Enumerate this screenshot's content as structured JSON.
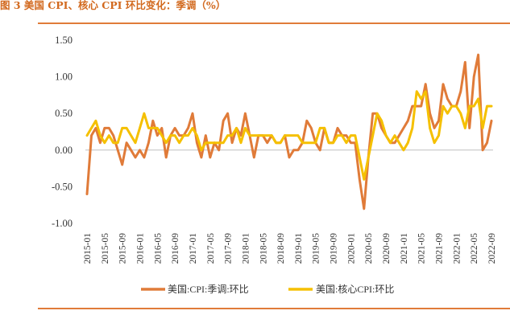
{
  "title": "图 3 美国 CPI、核心 CPI 环比变化：季调（%）",
  "colors": {
    "accent": "#e07b39",
    "series1": "#e07b39",
    "series2": "#f5c000"
  },
  "chart_data": {
    "type": "line",
    "title": "图 3 美国 CPI、核心 CPI 环比变化：季调（%）",
    "ylim": [
      -1.0,
      1.5
    ],
    "yticks": [
      "1.50",
      "1.00",
      "0.50",
      "0.00",
      "-0.50",
      "-1.00"
    ],
    "ytick_values": [
      1.5,
      1.0,
      0.5,
      0.0,
      -0.5,
      -1.0
    ],
    "legend_position": "bottom",
    "grid": false,
    "x": [
      "2015-01",
      "2015-02",
      "2015-03",
      "2015-04",
      "2015-05",
      "2015-06",
      "2015-07",
      "2015-08",
      "2015-09",
      "2015-10",
      "2015-11",
      "2015-12",
      "2016-01",
      "2016-02",
      "2016-03",
      "2016-04",
      "2016-05",
      "2016-06",
      "2016-07",
      "2016-08",
      "2016-09",
      "2016-10",
      "2016-11",
      "2016-12",
      "2017-01",
      "2017-02",
      "2017-03",
      "2017-04",
      "2017-05",
      "2017-06",
      "2017-07",
      "2017-08",
      "2017-09",
      "2017-10",
      "2017-11",
      "2017-12",
      "2018-01",
      "2018-02",
      "2018-03",
      "2018-04",
      "2018-05",
      "2018-06",
      "2018-07",
      "2018-08",
      "2018-09",
      "2018-10",
      "2018-11",
      "2018-12",
      "2019-01",
      "2019-02",
      "2019-03",
      "2019-04",
      "2019-05",
      "2019-06",
      "2019-07",
      "2019-08",
      "2019-09",
      "2019-10",
      "2019-11",
      "2019-12",
      "2020-01",
      "2020-02",
      "2020-03",
      "2020-04",
      "2020-05",
      "2020-06",
      "2020-07",
      "2020-08",
      "2020-09",
      "2020-10",
      "2020-11",
      "2020-12",
      "2021-01",
      "2021-02",
      "2021-03",
      "2021-04",
      "2021-05",
      "2021-06",
      "2021-07",
      "2021-08",
      "2021-09",
      "2021-10",
      "2021-11",
      "2021-12",
      "2022-01",
      "2022-02",
      "2022-03",
      "2022-04",
      "2022-05",
      "2022-06",
      "2022-07",
      "2022-08",
      "2022-09"
    ],
    "xtick_labels": [
      "2015-01",
      "2015-05",
      "2015-09",
      "2016-01",
      "2016-05",
      "2016-09",
      "2017-01",
      "2017-05",
      "2017-09",
      "2018-01",
      "2018-05",
      "2018-09",
      "2019-01",
      "2019-05",
      "2019-09",
      "2020-01",
      "2020-05",
      "2020-09",
      "2021-01",
      "2021-05",
      "2021-09",
      "2022-01",
      "2022-05",
      "2022-09"
    ],
    "series": [
      {
        "name": "美国:CPI:季调:环比",
        "values": [
          -0.6,
          0.2,
          0.3,
          0.1,
          0.3,
          0.3,
          0.2,
          0.0,
          -0.2,
          0.1,
          0.0,
          -0.1,
          0.0,
          -0.1,
          0.1,
          0.4,
          0.2,
          0.3,
          -0.1,
          0.2,
          0.3,
          0.2,
          0.2,
          0.3,
          0.5,
          0.1,
          -0.1,
          0.2,
          -0.1,
          0.1,
          0.0,
          0.4,
          0.5,
          0.1,
          0.3,
          0.2,
          0.5,
          0.2,
          -0.1,
          0.2,
          0.2,
          0.1,
          0.2,
          0.1,
          0.1,
          0.2,
          -0.1,
          0.0,
          0.0,
          0.1,
          0.4,
          0.3,
          0.1,
          0.0,
          0.3,
          0.1,
          0.1,
          0.3,
          0.2,
          0.2,
          0.1,
          0.1,
          -0.4,
          -0.8,
          -0.1,
          0.5,
          0.5,
          0.3,
          0.2,
          0.1,
          0.1,
          0.2,
          0.3,
          0.4,
          0.6,
          0.6,
          0.6,
          0.9,
          0.5,
          0.3,
          0.4,
          0.9,
          0.7,
          0.6,
          0.6,
          0.8,
          1.2,
          0.3,
          1.0,
          1.3,
          0.0,
          0.1,
          0.4
        ]
      },
      {
        "name": "美国:核心CPI:环比",
        "values": [
          0.2,
          0.3,
          0.4,
          0.2,
          0.1,
          0.2,
          0.1,
          0.1,
          0.3,
          0.3,
          0.2,
          0.1,
          0.3,
          0.5,
          0.3,
          0.3,
          0.3,
          0.2,
          0.1,
          0.2,
          0.2,
          0.1,
          0.2,
          0.2,
          0.3,
          0.2,
          0.0,
          0.1,
          0.1,
          0.1,
          0.1,
          0.1,
          0.2,
          0.2,
          0.3,
          0.1,
          0.3,
          0.2,
          0.2,
          0.2,
          0.2,
          0.2,
          0.2,
          0.1,
          0.1,
          0.2,
          0.2,
          0.2,
          0.2,
          0.1,
          0.1,
          0.1,
          0.1,
          0.3,
          0.3,
          0.1,
          0.1,
          0.2,
          0.2,
          0.1,
          0.2,
          0.2,
          -0.1,
          -0.4,
          -0.1,
          0.2,
          0.5,
          0.4,
          0.2,
          0.1,
          0.2,
          0.1,
          0.0,
          0.1,
          0.3,
          0.8,
          0.7,
          0.8,
          0.3,
          0.1,
          0.2,
          0.6,
          0.5,
          0.6,
          0.6,
          0.5,
          0.3,
          0.6,
          0.6,
          0.7,
          0.3,
          0.6,
          0.6
        ]
      }
    ]
  }
}
